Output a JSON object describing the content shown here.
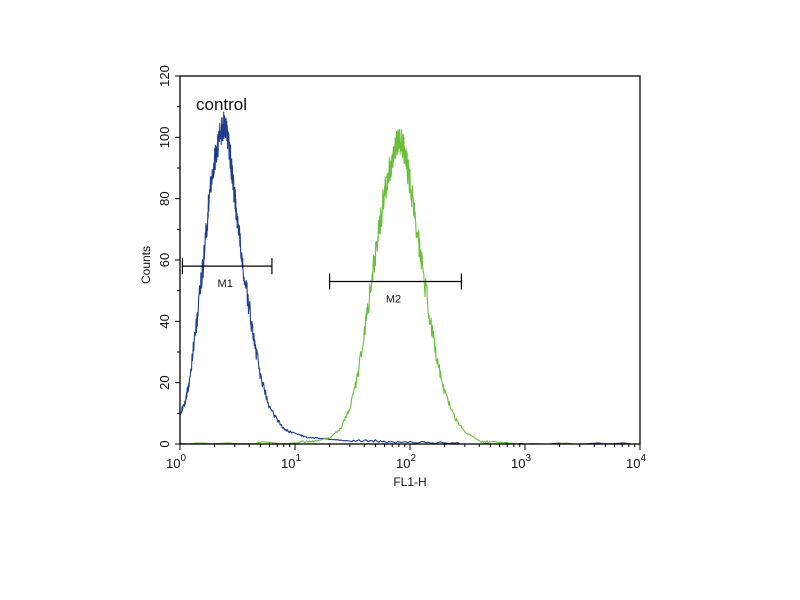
{
  "chart_data": {
    "type": "line",
    "annotation": "control",
    "xlabel": "FL1-H",
    "ylabel": "Counts",
    "x_scale": "log",
    "xlim": [
      1,
      10000
    ],
    "ylim": [
      0,
      120
    ],
    "x_ticks": [
      {
        "value": 1,
        "base": "10",
        "exp": "0"
      },
      {
        "value": 10,
        "base": "10",
        "exp": "1"
      },
      {
        "value": 100,
        "base": "10",
        "exp": "2"
      },
      {
        "value": 1000,
        "base": "10",
        "exp": "3"
      },
      {
        "value": 10000,
        "base": "10",
        "exp": "4"
      }
    ],
    "y_ticks": [
      "0",
      "20",
      "40",
      "60",
      "80",
      "100",
      "120"
    ],
    "grid": false,
    "series": [
      {
        "color": "#1f3d8f",
        "x": [
          1.0,
          1.1,
          1.2,
          1.35,
          1.5,
          1.65,
          1.8,
          1.95,
          2.1,
          2.25,
          2.4,
          2.5,
          2.6,
          2.75,
          2.9,
          3.1,
          3.3,
          3.6,
          4.0,
          4.5,
          5.0,
          6.0,
          7.0,
          8.0,
          9.0,
          11.0,
          13.0,
          16.0,
          20.0,
          30.0,
          50.0,
          80.0,
          150.0,
          300.0,
          1000.0,
          10000.0
        ],
        "y": [
          10,
          13,
          20,
          35,
          50,
          65,
          80,
          90,
          97,
          101,
          104,
          103,
          100,
          93,
          85,
          75,
          66,
          55,
          44,
          32,
          22,
          12,
          8,
          5,
          4,
          3,
          2,
          2,
          1.5,
          1,
          1,
          0.5,
          0.5,
          0,
          0,
          0
        ]
      },
      {
        "color": "#6abf3a",
        "x": [
          1.0,
          10.0,
          15.0,
          20.0,
          25.0,
          30.0,
          35.0,
          40.0,
          45.0,
          50.0,
          55.0,
          60.0,
          65.0,
          70.0,
          75.0,
          80.0,
          85.0,
          90.0,
          95.0,
          100.0,
          110.0,
          120.0,
          135.0,
          150.0,
          170.0,
          200.0,
          250.0,
          300.0,
          400.0,
          500.0,
          1000.0,
          10000.0
        ],
        "y": [
          0,
          0.5,
          1,
          2,
          5,
          12,
          22,
          35,
          50,
          62,
          72,
          82,
          88,
          93,
          97,
          99,
          98,
          95,
          90,
          85,
          75,
          65,
          52,
          40,
          28,
          17,
          8,
          4,
          1,
          0.5,
          0,
          0
        ]
      }
    ],
    "markers": [
      {
        "label": "M1",
        "x_start": 1.05,
        "x_end": 6.3,
        "y": 58
      },
      {
        "label": "M2",
        "x_start": 20.0,
        "x_end": 280.0,
        "y": 53
      }
    ]
  }
}
